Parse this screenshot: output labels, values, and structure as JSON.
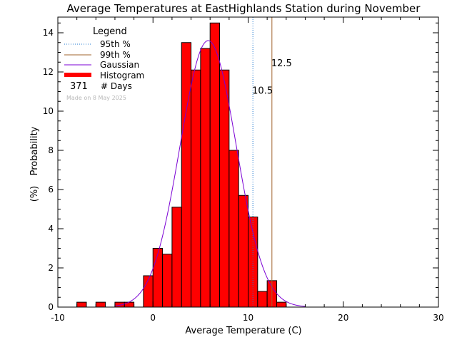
{
  "chart_data": {
    "type": "bar",
    "title": "Average Temperatures at EastHighlands Station during November",
    "xlabel": "Average Temperature (C)",
    "ylabel_top": "Probability",
    "ylabel_bottom": "(%)",
    "xlim": [
      -10,
      30
    ],
    "ylim": [
      0,
      14.8
    ],
    "x_ticks": [
      -10,
      0,
      10,
      20,
      30
    ],
    "y_ticks": [
      0,
      2,
      4,
      6,
      8,
      10,
      12,
      14
    ],
    "bin_width": 1,
    "bins": [
      {
        "x0": -8,
        "value": 0.25
      },
      {
        "x0": -6,
        "value": 0.25
      },
      {
        "x0": -4,
        "value": 0.25
      },
      {
        "x0": -3,
        "value": 0.25
      },
      {
        "x0": -1,
        "value": 1.6
      },
      {
        "x0": 0,
        "value": 3.0
      },
      {
        "x0": 1,
        "value": 2.7
      },
      {
        "x0": 2,
        "value": 5.1
      },
      {
        "x0": 3,
        "value": 13.5
      },
      {
        "x0": 4,
        "value": 12.1
      },
      {
        "x0": 5,
        "value": 13.2
      },
      {
        "x0": 6,
        "value": 14.5
      },
      {
        "x0": 7,
        "value": 12.1
      },
      {
        "x0": 8,
        "value": 8.0
      },
      {
        "x0": 9,
        "value": 5.7
      },
      {
        "x0": 10,
        "value": 4.6
      },
      {
        "x0": 11,
        "value": 0.8
      },
      {
        "x0": 12,
        "value": 1.35
      },
      {
        "x0": 13,
        "value": 0.25
      }
    ],
    "gaussian": {
      "mean": 5.8,
      "sd": 2.95,
      "peak": 13.6
    },
    "percentile_95": {
      "label": "10.5",
      "value": 10.5,
      "color": "#1f78d0"
    },
    "percentile_99": {
      "label": "12.5",
      "value": 12.5,
      "color": "#a0642d"
    },
    "legend": {
      "title": "Legend",
      "items": [
        {
          "label": "95th %",
          "color": "#1f78d0",
          "style": "dotted"
        },
        {
          "label": "99th %",
          "color": "#a0642d",
          "style": "solid"
        },
        {
          "label": "Gaussian",
          "color": "#7b00d4",
          "style": "solid"
        },
        {
          "label": "Histogram",
          "color": "#ff0000",
          "style": "thick"
        }
      ],
      "count": "371",
      "count_label": "# Days"
    },
    "made_on": "Made on 8 May 2025",
    "colors": {
      "bar_fill": "#ff0000",
      "bar_outline": "#000000",
      "gaussian": "#7b00d4"
    }
  }
}
